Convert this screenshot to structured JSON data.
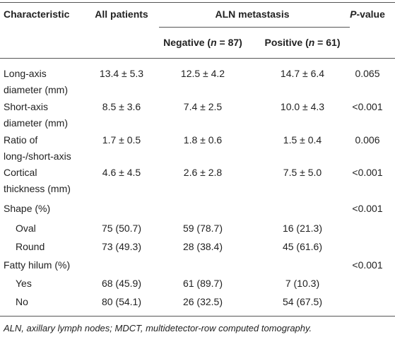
{
  "table": {
    "header": {
      "characteristic": "Characteristic",
      "all": "All patients",
      "group": "ALN metastasis",
      "negative": [
        {
          "text": "Negative ("
        },
        {
          "text": "n",
          "italic": true
        },
        {
          "text": " = 87)"
        }
      ],
      "positive": [
        {
          "text": "Positive ("
        },
        {
          "text": "n",
          "italic": true
        },
        {
          "text": " = 61)"
        }
      ],
      "p": [
        {
          "text": "P",
          "italic": true
        },
        {
          "text": "-value"
        }
      ]
    },
    "rows": [
      {
        "label": [
          "Long-axis",
          "diameter (mm)"
        ],
        "all": "13.4 ± 5.3",
        "negative": "12.5 ± 4.2",
        "positive": "14.7 ± 6.4",
        "p": "0.065"
      },
      {
        "label": [
          "Short-axis",
          "diameter (mm)"
        ],
        "all": "8.5 ± 3.6",
        "negative": "7.4 ± 2.5",
        "positive": "10.0 ± 4.3",
        "p": "<0.001"
      },
      {
        "label": [
          "Ratio of",
          "long-/short-axis"
        ],
        "all": "1.7 ± 0.5",
        "negative": "1.8 ± 0.6",
        "positive": "1.5 ± 0.4",
        "p": "0.006"
      },
      {
        "label": [
          "Cortical",
          "thickness (mm)"
        ],
        "all": "4.6 ± 4.5",
        "negative": "2.6 ± 2.8",
        "positive": "7.5 ± 5.0",
        "p": "<0.001"
      },
      {
        "label": [
          "Shape (%)"
        ],
        "p": "<0.001"
      },
      {
        "label": [
          "Oval"
        ],
        "indent": true,
        "all": "75 (50.7)",
        "negative": "59 (78.7)",
        "positive": "16 (21.3)"
      },
      {
        "label": [
          "Round"
        ],
        "indent": true,
        "all": "73 (49.3)",
        "negative": "28 (38.4)",
        "positive": "45 (61.6)"
      },
      {
        "label": [
          "Fatty hilum (%)"
        ],
        "p": "<0.001"
      },
      {
        "label": [
          "Yes"
        ],
        "indent": true,
        "all": "68 (45.9)",
        "negative": "61 (89.7)",
        "positive": "7 (10.3)"
      },
      {
        "label": [
          "No"
        ],
        "indent": true,
        "all": "80 (54.1)",
        "negative": "26 (32.5)",
        "positive": "54 (67.5)"
      }
    ],
    "footnote": "ALN, axillary lymph nodes; MDCT, multidetector-row computed tomography."
  }
}
